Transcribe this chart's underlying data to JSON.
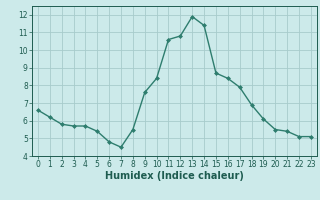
{
  "x": [
    0,
    1,
    2,
    3,
    4,
    5,
    6,
    7,
    8,
    9,
    10,
    11,
    12,
    13,
    14,
    15,
    16,
    17,
    18,
    19,
    20,
    21,
    22,
    23
  ],
  "y": [
    6.6,
    6.2,
    5.8,
    5.7,
    5.7,
    5.4,
    4.8,
    4.5,
    5.5,
    7.6,
    8.4,
    10.6,
    10.8,
    11.9,
    11.4,
    8.7,
    8.4,
    7.9,
    6.9,
    6.1,
    5.5,
    5.4,
    5.1,
    5.1
  ],
  "line_color": "#2e7d6e",
  "marker": "D",
  "marker_size": 2.0,
  "line_width": 1.0,
  "bg_color": "#cceaea",
  "grid_color": "#a8cccc",
  "xlabel": "Humidex (Indice chaleur)",
  "xlabel_fontsize": 7,
  "xlim": [
    -0.5,
    23.5
  ],
  "ylim": [
    4,
    12.5
  ],
  "yticks": [
    4,
    5,
    6,
    7,
    8,
    9,
    10,
    11,
    12
  ],
  "xticks": [
    0,
    1,
    2,
    3,
    4,
    5,
    6,
    7,
    8,
    9,
    10,
    11,
    12,
    13,
    14,
    15,
    16,
    17,
    18,
    19,
    20,
    21,
    22,
    23
  ],
  "tick_fontsize": 5.5,
  "axis_label_color": "#1e5c50"
}
